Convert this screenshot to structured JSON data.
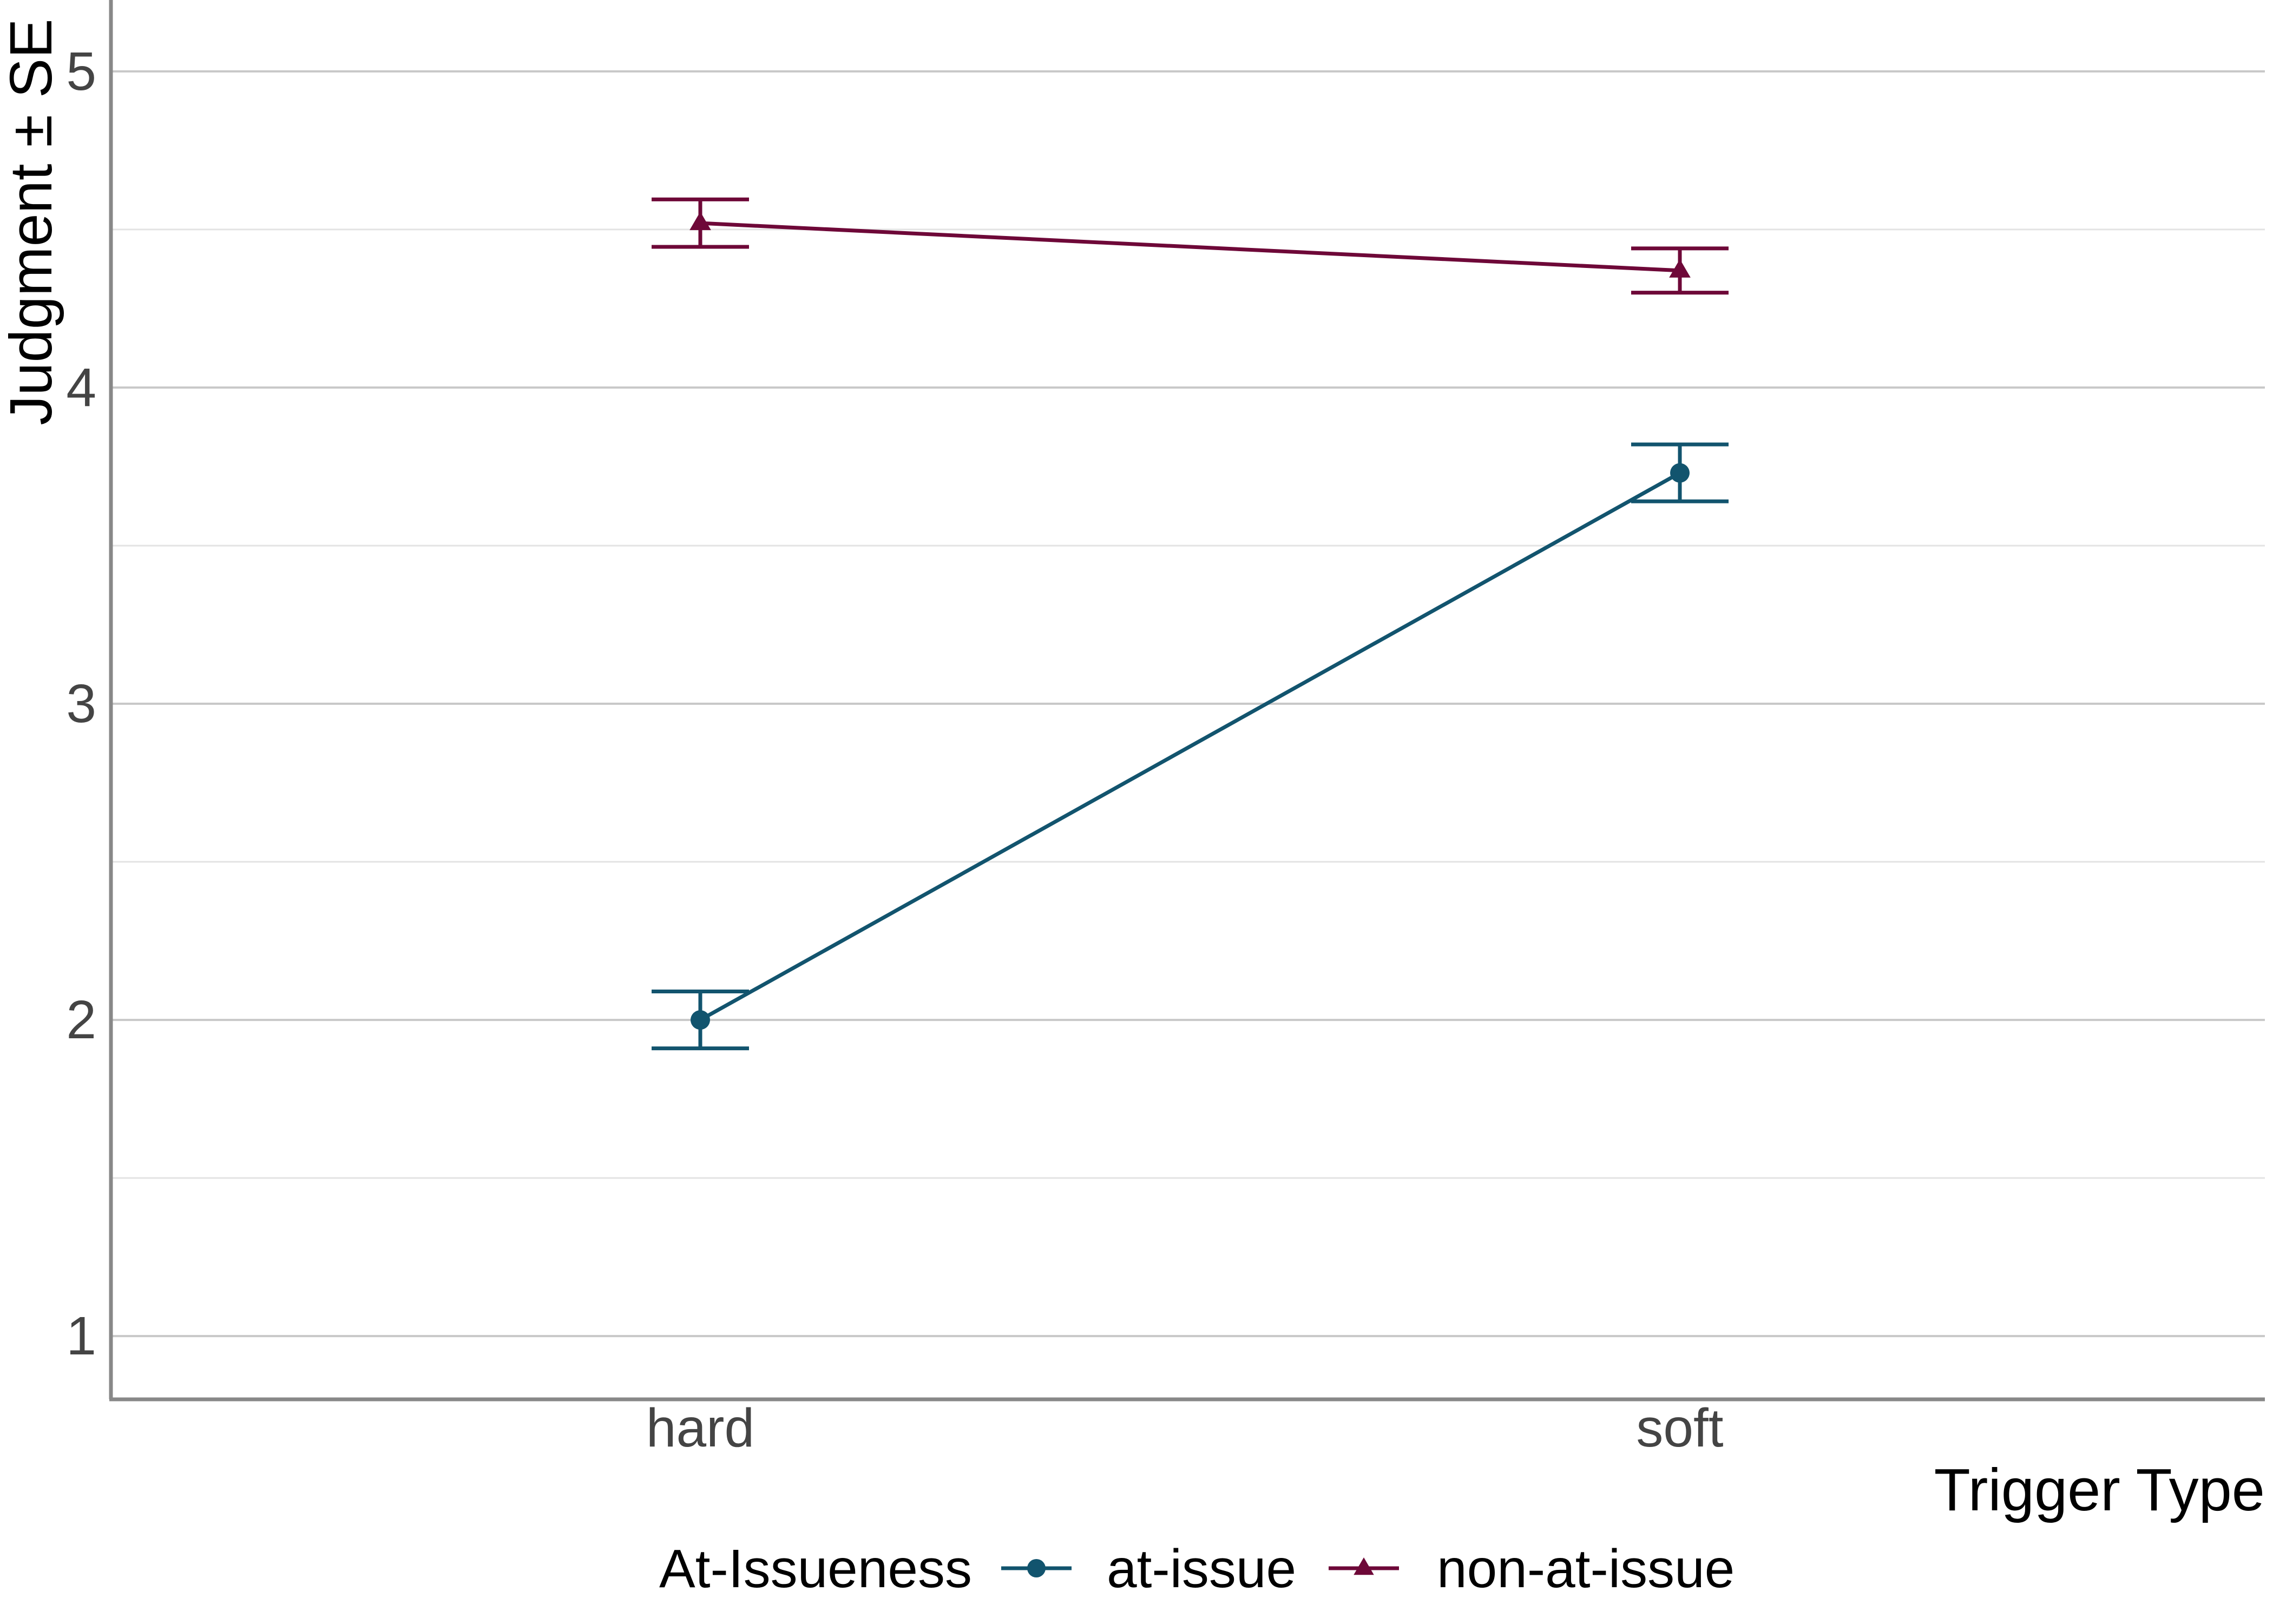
{
  "chart_data": {
    "type": "line",
    "title": "",
    "xlabel": "Trigger Type",
    "ylabel": "Judgment ± SE",
    "categories": [
      "hard",
      "soft"
    ],
    "ylim": [
      0.8,
      5.2
    ],
    "yticks": [
      1,
      2,
      3,
      4,
      5
    ],
    "grid": true,
    "legend": {
      "title": "At-Issueness",
      "placement": "bottom"
    },
    "series": [
      {
        "name": "at-issue",
        "marker": "circle",
        "color": "#12546e",
        "values": [
          2.0,
          3.73
        ],
        "se": [
          0.09,
          0.09
        ]
      },
      {
        "name": "non-at-issue",
        "marker": "triangle",
        "color": "#6e0838",
        "values": [
          4.52,
          4.37
        ],
        "se": [
          0.075,
          0.07
        ]
      }
    ]
  }
}
